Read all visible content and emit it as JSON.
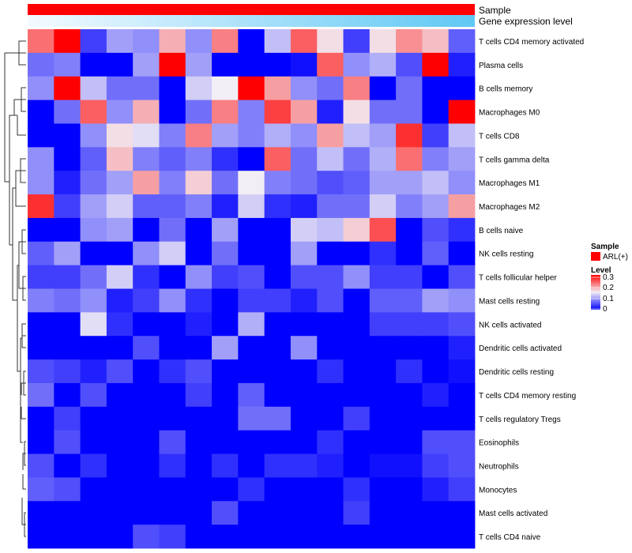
{
  "chart_data": {
    "type": "heatmap",
    "annotations": [
      {
        "label": "Sample",
        "color": "#ff0000"
      },
      {
        "label": "Gene expression level",
        "gradient": [
          "#f4faff",
          "#5fc8f4"
        ]
      }
    ],
    "rows": [
      "T cells CD4 memory activated",
      "Plasma cells",
      "B cells memory",
      "Macrophages M0",
      "T cells CD8",
      "T cells gamma delta",
      "Macrophages M1",
      "Macrophages M2",
      "B cells naive",
      "NK cells resting",
      "T cells follicular helper",
      "Mast cells resting",
      "NK cells activated",
      "Dendritic cells activated",
      "Dendritic cells resting",
      "T cells CD4 memory resting",
      "T cells regulatory  Tregs",
      "Eosinophils",
      "Neutrophils",
      "Monocytes",
      "Mast cells activated",
      "T cells CD4 naive"
    ],
    "values": [
      [
        0.23,
        0.3,
        0.04,
        0.1,
        0.09,
        0.19,
        0.09,
        0.22,
        0.0,
        0.12,
        0.24,
        0.16,
        0.04,
        0.16,
        0.21,
        0.18,
        0.06
      ],
      [
        0.07,
        0.08,
        0.0,
        0.0,
        0.1,
        0.31,
        0.1,
        0.0,
        0.0,
        0.0,
        0.01,
        0.24,
        0.09,
        0.11,
        0.05,
        0.3,
        0.02
      ],
      [
        0.09,
        0.3,
        0.12,
        0.07,
        0.07,
        0.0,
        0.13,
        0.15,
        0.3,
        0.2,
        0.09,
        0.07,
        0.22,
        0.0,
        0.07,
        0.0,
        0.0
      ],
      [
        0.0,
        0.07,
        0.24,
        0.09,
        0.19,
        0.0,
        0.07,
        0.22,
        0.08,
        0.26,
        0.2,
        0.02,
        0.16,
        0.07,
        0.07,
        0.0,
        0.3
      ],
      [
        0.0,
        0.0,
        0.09,
        0.16,
        0.14,
        0.08,
        0.22,
        0.1,
        0.08,
        0.11,
        0.09,
        0.2,
        0.12,
        0.1,
        0.27,
        0.04,
        0.12
      ],
      [
        0.09,
        0.0,
        0.06,
        0.18,
        0.08,
        0.06,
        0.08,
        0.03,
        0.0,
        0.24,
        0.07,
        0.12,
        0.07,
        0.11,
        0.23,
        0.08,
        0.1
      ],
      [
        0.09,
        0.02,
        0.07,
        0.1,
        0.2,
        0.08,
        0.17,
        0.07,
        0.15,
        0.08,
        0.07,
        0.05,
        0.06,
        0.1,
        0.1,
        0.12,
        0.09
      ],
      [
        0.27,
        0.04,
        0.1,
        0.13,
        0.06,
        0.06,
        0.08,
        0.02,
        0.13,
        0.03,
        0.02,
        0.07,
        0.07,
        0.13,
        0.08,
        0.1,
        0.2
      ],
      [
        0.0,
        0.0,
        0.09,
        0.1,
        0.0,
        0.07,
        0.0,
        0.1,
        0.0,
        0.0,
        0.13,
        0.12,
        0.17,
        0.25,
        0.0,
        0.05,
        0.03
      ],
      [
        0.06,
        0.1,
        0.0,
        0.0,
        0.09,
        0.13,
        0.0,
        0.07,
        0.0,
        0.0,
        0.1,
        0.0,
        0.0,
        0.03,
        0.0,
        0.06,
        0.0
      ],
      [
        0.04,
        0.04,
        0.07,
        0.13,
        0.03,
        0.0,
        0.09,
        0.04,
        0.05,
        0.0,
        0.05,
        0.05,
        0.09,
        0.04,
        0.04,
        0.0,
        0.05
      ],
      [
        0.08,
        0.07,
        0.09,
        0.02,
        0.04,
        0.09,
        0.03,
        0.0,
        0.04,
        0.04,
        0.02,
        0.05,
        0.0,
        0.06,
        0.06,
        0.1,
        0.09
      ],
      [
        0.0,
        0.0,
        0.14,
        0.03,
        0.0,
        0.0,
        0.02,
        0.0,
        0.11,
        0.0,
        0.0,
        0.0,
        0.0,
        0.04,
        0.04,
        0.04,
        0.05
      ],
      [
        0.0,
        0.0,
        0.0,
        0.0,
        0.05,
        0.0,
        0.0,
        0.1,
        0.0,
        0.0,
        0.09,
        0.0,
        0.0,
        0.0,
        0.0,
        0.0,
        0.02
      ],
      [
        0.05,
        0.04,
        0.02,
        0.05,
        0.0,
        0.03,
        0.05,
        0.0,
        0.0,
        0.0,
        0.0,
        0.03,
        0.0,
        0.0,
        0.03,
        0.0,
        0.01
      ],
      [
        0.07,
        0.0,
        0.05,
        0.0,
        0.0,
        0.0,
        0.04,
        0.0,
        0.06,
        0.0,
        0.0,
        0.0,
        0.0,
        0.0,
        0.0,
        0.02,
        0.0
      ],
      [
        0.0,
        0.04,
        0.0,
        0.0,
        0.0,
        0.0,
        0.0,
        0.0,
        0.07,
        0.07,
        0.0,
        0.0,
        0.04,
        0.0,
        0.0,
        0.0,
        0.0
      ],
      [
        0.0,
        0.05,
        0.0,
        0.0,
        0.0,
        0.05,
        0.0,
        0.0,
        0.0,
        0.0,
        0.0,
        0.03,
        0.0,
        0.0,
        0.0,
        0.05,
        0.05
      ],
      [
        0.05,
        0.0,
        0.03,
        0.0,
        0.0,
        0.03,
        0.0,
        0.03,
        0.0,
        0.03,
        0.03,
        0.02,
        0.0,
        0.01,
        0.01,
        0.04,
        0.05
      ],
      [
        0.06,
        0.05,
        0.0,
        0.0,
        0.0,
        0.0,
        0.0,
        0.0,
        0.03,
        0.0,
        0.0,
        0.0,
        0.03,
        0.0,
        0.0,
        0.02,
        0.04
      ],
      [
        0.0,
        0.0,
        0.0,
        0.0,
        0.0,
        0.0,
        0.0,
        0.05,
        0.0,
        0.0,
        0.0,
        0.0,
        0.04,
        0.0,
        0.0,
        0.0,
        0.0
      ],
      [
        0.0,
        0.0,
        0.0,
        0.0,
        0.05,
        0.04,
        0.0,
        0.0,
        0.0,
        0.0,
        0.0,
        0.0,
        0.0,
        0.0,
        0.0,
        0.0,
        0.0
      ]
    ],
    "color_scale": {
      "low": "#0000ff",
      "mid": "#f2eef5",
      "high": "#ff0000",
      "range": [
        0,
        0.3
      ]
    },
    "legend": {
      "placement": "right",
      "sample_title": "Sample",
      "sample_label": "ARL(+)",
      "level_title": "Level",
      "level_ticks": [
        "0.3",
        "0.2",
        "0.1",
        "0"
      ]
    },
    "dendrogram": "rows"
  }
}
